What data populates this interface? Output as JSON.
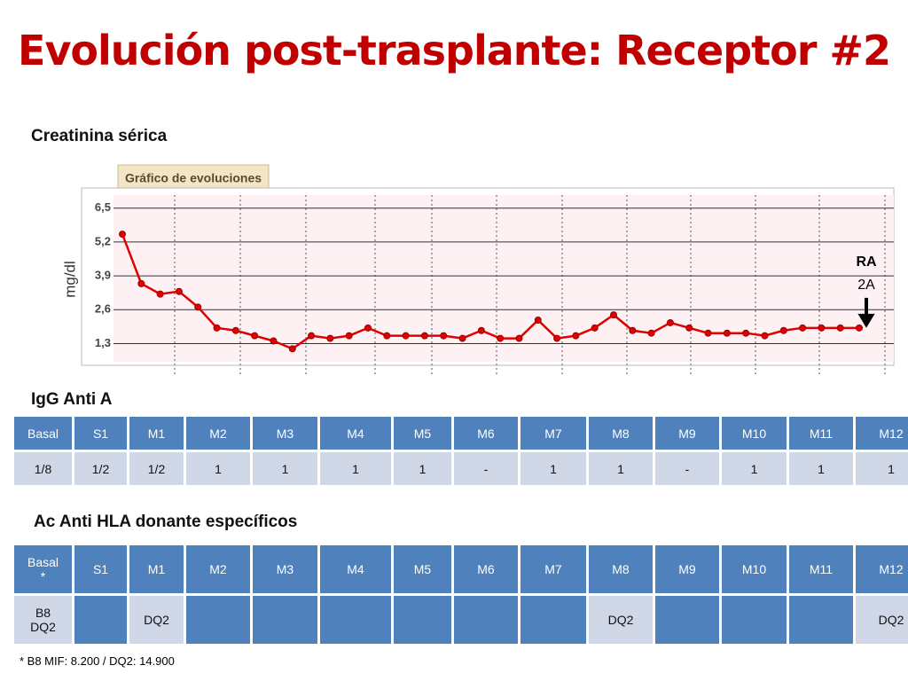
{
  "title": "Evolución post-trasplante: Receptor #2",
  "chart_data": {
    "type": "line",
    "title": "Creatinina sérica",
    "panel_label": "Gráfico de evoluciones",
    "y_label": "mg/dl",
    "color": "#e00000",
    "values": [
      5.5,
      3.6,
      3.2,
      3.3,
      2.7,
      1.9,
      1.8,
      1.6,
      1.4,
      1.1,
      1.6,
      1.5,
      1.6,
      1.9,
      1.6,
      1.6,
      1.6,
      1.6,
      1.5,
      1.8,
      1.5,
      1.5,
      2.2,
      1.5,
      1.6,
      1.9,
      2.4,
      1.8,
      1.7,
      2.1,
      1.9,
      1.7,
      1.7,
      1.7,
      1.6,
      1.8,
      1.9,
      1.9,
      1.9,
      1.9
    ],
    "ylim": [
      0.6,
      7.0
    ],
    "yticks": [
      {
        "value": 1.3,
        "label": "1,3"
      },
      {
        "value": 2.6,
        "label": "2,6"
      },
      {
        "value": 3.9,
        "label": "3,9"
      },
      {
        "value": 5.2,
        "label": "5,2"
      },
      {
        "value": 6.5,
        "label": "6,5"
      }
    ],
    "grid": true,
    "annotations": [
      "RA",
      "2A"
    ]
  },
  "tables": [
    {
      "title": "IgG Anti A",
      "header": [
        "Basal",
        "S1",
        "M1",
        "M2",
        "M3",
        "M4",
        "M5",
        "M6",
        "M7",
        "M8",
        "M9",
        "M10",
        "M11",
        "M12"
      ],
      "rows": [
        [
          "1/8",
          "1/2",
          "1/2",
          "1",
          "1",
          "1",
          "1",
          "-",
          "1",
          "1",
          "-",
          "1",
          "1",
          "1"
        ]
      ]
    },
    {
      "title": "Ac Anti HLA donante específicos",
      "header": [
        "Basal\n*",
        "S1",
        "M1",
        "M2",
        "M3",
        "M4",
        "M5",
        "M6",
        "M7",
        "M8",
        "M9",
        "M10",
        "M11",
        "M12"
      ],
      "rows": [
        [
          "B8\nDQ2",
          null,
          "DQ2",
          null,
          null,
          null,
          null,
          null,
          null,
          "DQ2",
          null,
          null,
          null,
          "DQ2"
        ]
      ]
    }
  ],
  "footnote": "* B8 MIF: 8.200  / DQ2: 14.900"
}
